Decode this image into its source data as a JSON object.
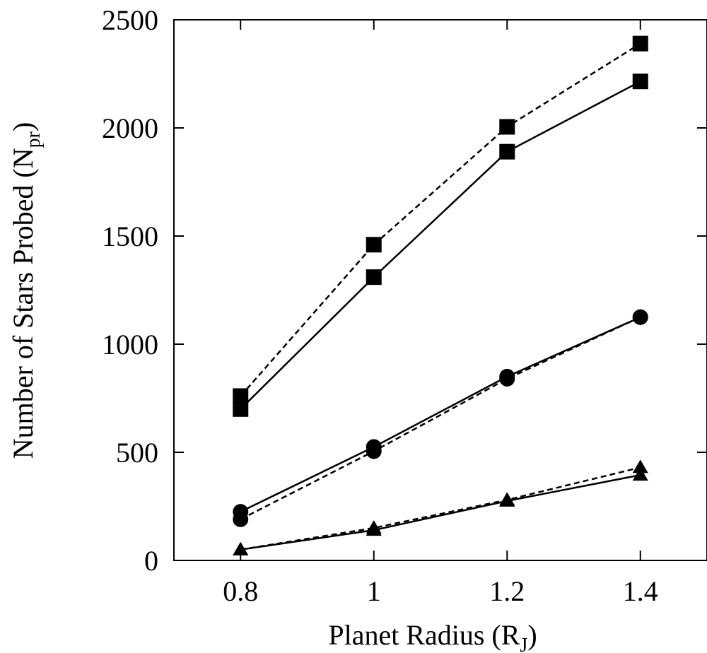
{
  "chart_data": {
    "type": "line",
    "xlabel": "Planet Radius (R",
    "xlabel_sub": "J",
    "xlabel_end": ")",
    "ylabel": "Number of Stars Probed (N",
    "ylabel_sub": "pr",
    "ylabel_end": ")",
    "xlim": [
      0.7,
      1.5
    ],
    "ylim": [
      0,
      2500
    ],
    "xticks": [
      "0.8",
      "1",
      "1.2",
      "1.4"
    ],
    "yticks": [
      "0",
      "500",
      "1000",
      "1500",
      "2000",
      "2500"
    ],
    "grid": false,
    "x": [
      0.8,
      1.0,
      1.2,
      1.4
    ],
    "series": [
      {
        "marker": "square",
        "line_style": "dashed",
        "values": [
          760,
          1460,
          2005,
          2390
        ]
      },
      {
        "marker": "square",
        "line_style": "solid",
        "values": [
          700,
          1310,
          1890,
          2215
        ]
      },
      {
        "marker": "circle",
        "line_style": "solid",
        "values": [
          225,
          525,
          850,
          1125
        ]
      },
      {
        "marker": "circle",
        "line_style": "dashed",
        "values": [
          190,
          505,
          840,
          1125
        ]
      },
      {
        "marker": "triangle",
        "line_style": "dashed",
        "values": [
          50,
          150,
          280,
          430
        ]
      },
      {
        "marker": "triangle",
        "line_style": "solid",
        "values": [
          50,
          140,
          275,
          395
        ]
      }
    ]
  }
}
